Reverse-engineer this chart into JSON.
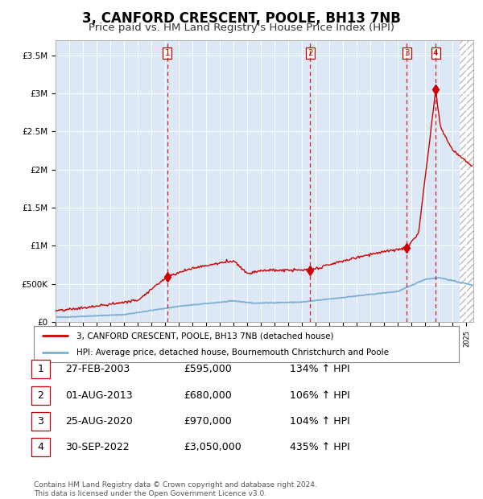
{
  "title": "3, CANFORD CRESCENT, POOLE, BH13 7NB",
  "subtitle": "Price paid vs. HM Land Registry's House Price Index (HPI)",
  "title_fontsize": 12,
  "subtitle_fontsize": 9.5,
  "background_color": "#ffffff",
  "plot_bg_color": "#dce8f5",
  "ylim": [
    0,
    3700000
  ],
  "xlim_start": 1995.0,
  "xlim_end": 2025.5,
  "sale_dates_num": [
    2003.15,
    2013.58,
    2020.65,
    2022.75
  ],
  "sale_prices": [
    595000,
    680000,
    970000,
    3050000
  ],
  "sale_labels": [
    "1",
    "2",
    "3",
    "4"
  ],
  "legend_line1": "3, CANFORD CRESCENT, POOLE, BH13 7NB (detached house)",
  "legend_line2": "HPI: Average price, detached house, Bournemouth Christchurch and Poole",
  "table_data": [
    [
      "1",
      "27-FEB-2003",
      "£595,000",
      "134% ↑ HPI"
    ],
    [
      "2",
      "01-AUG-2013",
      "£680,000",
      "106% ↑ HPI"
    ],
    [
      "3",
      "25-AUG-2020",
      "£970,000",
      "104% ↑ HPI"
    ],
    [
      "4",
      "30-SEP-2022",
      "£3,050,000",
      "435% ↑ HPI"
    ]
  ],
  "footer": "Contains HM Land Registry data © Crown copyright and database right 2024.\nThis data is licensed under the Open Government Licence v3.0.",
  "red_line_color": "#cc0000",
  "blue_line_color": "#7ab0d4",
  "hatch_color": "#bbbbbb",
  "yticks": [
    0,
    500000,
    1000000,
    1500000,
    2000000,
    2500000,
    3000000,
    3500000
  ],
  "ylabels": [
    "£0",
    "£500K",
    "£1M",
    "£1.5M",
    "£2M",
    "£2.5M",
    "£3M",
    "£3.5M"
  ]
}
